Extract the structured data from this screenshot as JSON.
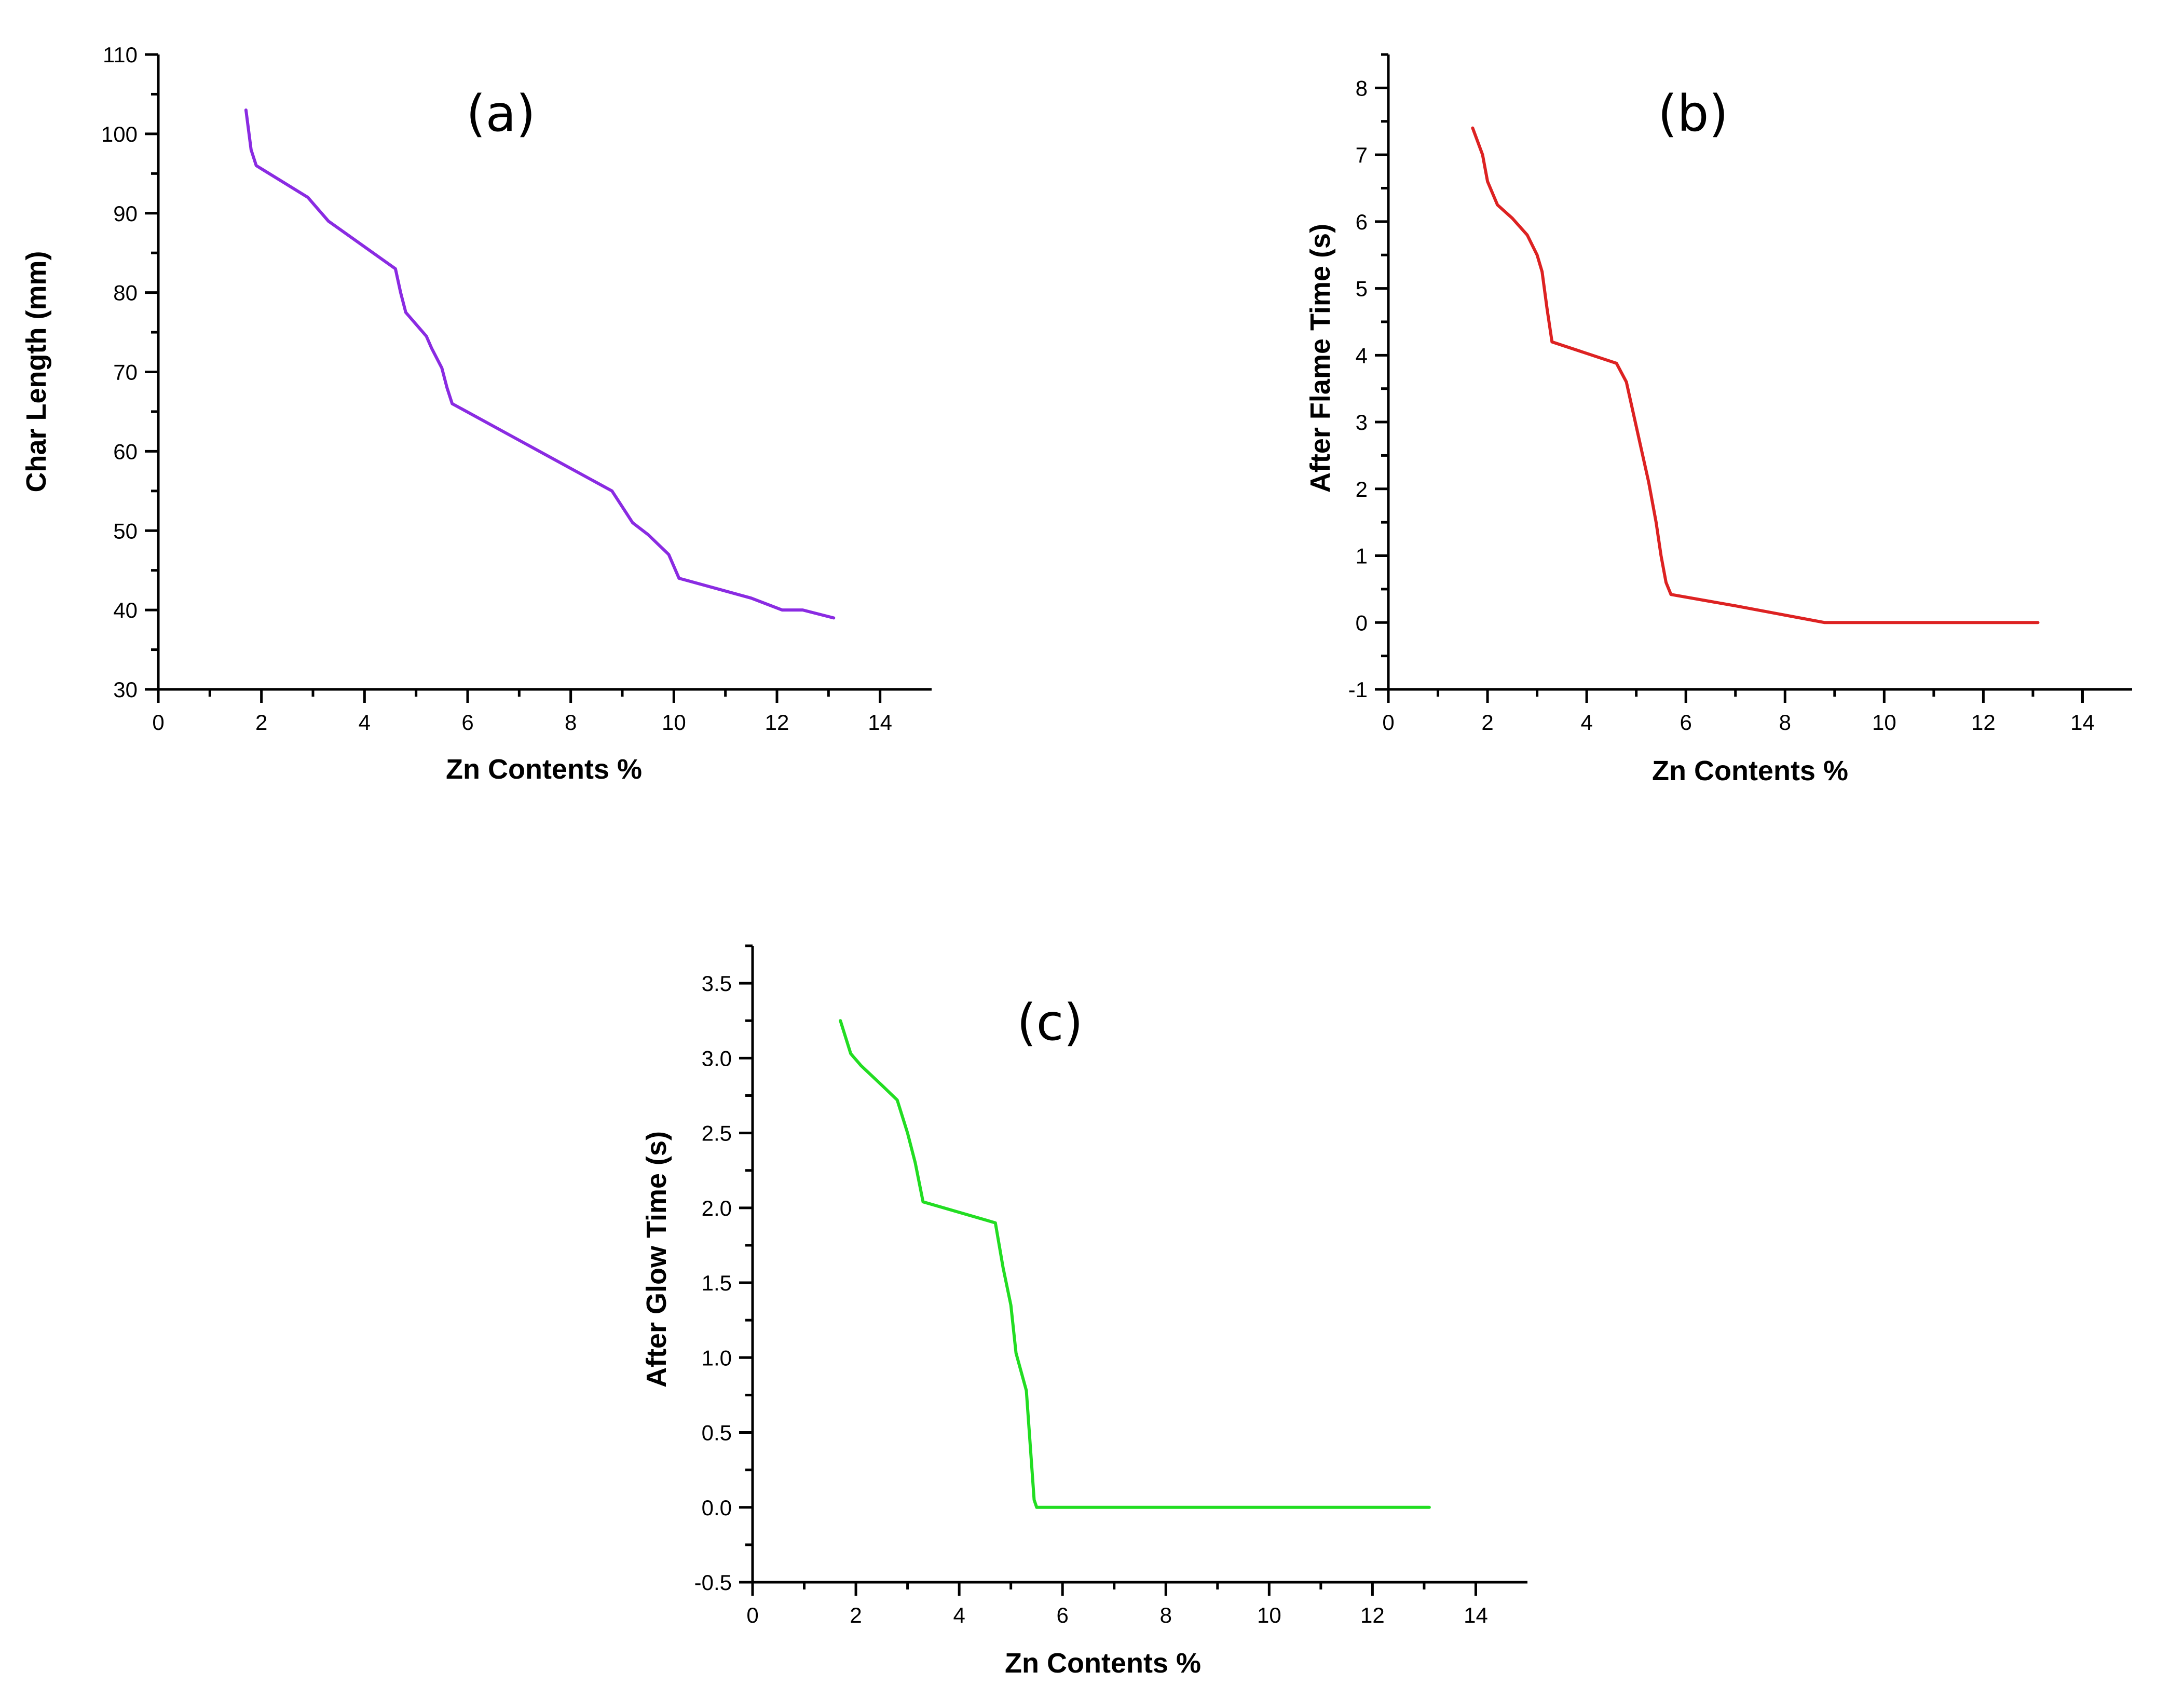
{
  "chart_data": [
    {
      "type": "line",
      "id": "a",
      "title": "(a)",
      "xlabel": "Zn Contents %",
      "ylabel": "Char Length (mm)",
      "xlim": [
        0,
        15
      ],
      "ylim": [
        30,
        110
      ],
      "xticks": [
        0,
        2,
        4,
        6,
        8,
        10,
        12,
        14
      ],
      "yticks": [
        30,
        40,
        50,
        60,
        70,
        80,
        90,
        100,
        110
      ],
      "xtick_labels": [
        "0",
        "2",
        "4",
        "6",
        "8",
        "10",
        "12",
        "14"
      ],
      "ytick_labels": [
        "30",
        "40",
        "50",
        "60",
        "70",
        "80",
        "90",
        "100",
        "110"
      ],
      "color": "#8a2be2",
      "series": [
        {
          "name": "Char Length",
          "x": [
            1.7,
            1.8,
            1.9,
            2.4,
            2.9,
            3.1,
            3.3,
            4.6,
            4.7,
            4.8,
            5.0,
            5.2,
            5.3,
            5.5,
            5.6,
            5.7,
            8.8,
            9.0,
            9.2,
            9.5,
            9.9,
            10.1,
            11.5,
            12.1,
            12.5,
            13.1
          ],
          "y": [
            103,
            98,
            96,
            94,
            92,
            90.5,
            89,
            83,
            80,
            77.5,
            76,
            74.5,
            73,
            70.5,
            68,
            66,
            55,
            53,
            51,
            49.5,
            47,
            44,
            41.5,
            40,
            40,
            39
          ]
        }
      ]
    },
    {
      "type": "line",
      "id": "b",
      "title": "(b)",
      "xlabel": "Zn Contents %",
      "ylabel": "After Flame Time (s)",
      "xlim": [
        0,
        15
      ],
      "ylim": [
        -1,
        8.5
      ],
      "xticks": [
        0,
        2,
        4,
        6,
        8,
        10,
        12,
        14
      ],
      "yticks": [
        -1,
        0,
        1,
        2,
        3,
        4,
        5,
        6,
        7,
        8
      ],
      "xtick_labels": [
        "0",
        "2",
        "4",
        "6",
        "8",
        "10",
        "12",
        "14"
      ],
      "ytick_labels": [
        "-1",
        "0",
        "1",
        "2",
        "3",
        "4",
        "5",
        "6",
        "7",
        "8"
      ],
      "color": "#dd2222",
      "series": [
        {
          "name": "After Flame Time",
          "x": [
            1.7,
            1.9,
            2.0,
            2.2,
            2.5,
            2.8,
            3.0,
            3.1,
            3.2,
            3.3,
            4.6,
            4.8,
            4.95,
            5.1,
            5.25,
            5.4,
            5.5,
            5.6,
            5.7,
            7.0,
            8.8,
            10.5,
            13.1
          ],
          "y": [
            7.4,
            7.0,
            6.6,
            6.25,
            6.05,
            5.8,
            5.5,
            5.25,
            4.7,
            4.2,
            3.88,
            3.6,
            3.1,
            2.6,
            2.1,
            1.5,
            1.0,
            0.6,
            0.42,
            0.25,
            0.0,
            0.0,
            0.0
          ]
        }
      ]
    },
    {
      "type": "line",
      "id": "c",
      "title": "(c)",
      "xlabel": "Zn Contents %",
      "ylabel": "After Glow Time (s)",
      "xlim": [
        0,
        15
      ],
      "ylim": [
        -0.5,
        3.75
      ],
      "xticks": [
        0,
        2,
        4,
        6,
        8,
        10,
        12,
        14
      ],
      "yticks": [
        -0.5,
        0.0,
        0.5,
        1.0,
        1.5,
        2.0,
        2.5,
        3.0,
        3.5
      ],
      "xtick_labels": [
        "0",
        "2",
        "4",
        "6",
        "8",
        "10",
        "12",
        "14"
      ],
      "ytick_labels": [
        "-0.5",
        "0.0",
        "0.5",
        "1.0",
        "1.5",
        "2.0",
        "2.5",
        "3.0",
        "3.5"
      ],
      "color": "#22dd22",
      "series": [
        {
          "name": "After Glow Time",
          "x": [
            1.7,
            1.9,
            2.1,
            2.5,
            2.8,
            3.0,
            3.15,
            3.3,
            4.7,
            4.85,
            5.0,
            5.1,
            5.3,
            5.45,
            5.5,
            9.0,
            13.1
          ],
          "y": [
            3.25,
            3.03,
            2.95,
            2.82,
            2.72,
            2.5,
            2.3,
            2.04,
            1.9,
            1.6,
            1.35,
            1.03,
            0.78,
            0.05,
            0.0,
            0.0,
            0.0
          ]
        }
      ]
    }
  ]
}
